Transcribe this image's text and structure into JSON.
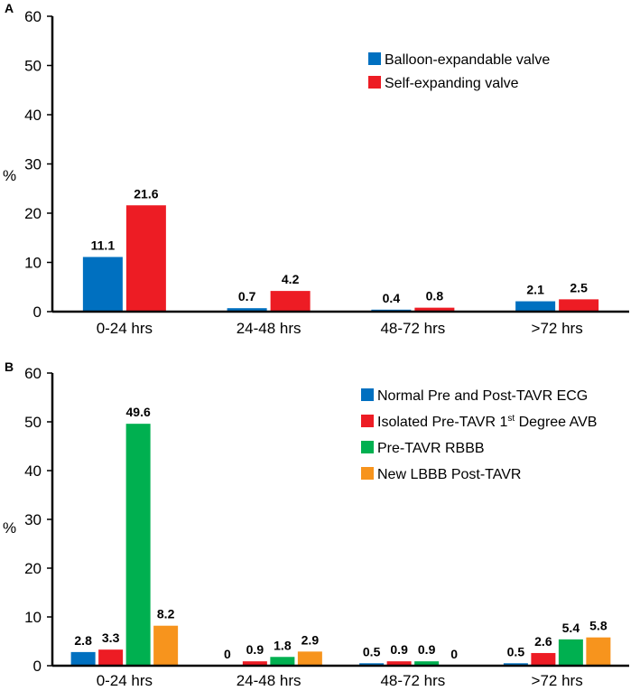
{
  "chart_data": [
    {
      "panel": "A",
      "type": "bar",
      "ylabel": "%",
      "ylim": [
        0,
        60
      ],
      "yticks": [
        0,
        10,
        20,
        30,
        40,
        50,
        60
      ],
      "categories": [
        "0-24 hrs",
        "24-48 hrs",
        "48-72 hrs",
        ">72 hrs"
      ],
      "legend_position": "top-right",
      "series": [
        {
          "name": "Balloon-expandable valve",
          "color": "#0070c0",
          "values": [
            11.1,
            0.7,
            0.4,
            2.1
          ],
          "labels": [
            "11.1",
            "0.7",
            "0.4",
            "2.1"
          ]
        },
        {
          "name": "Self-expanding valve",
          "color": "#ed1c24",
          "values": [
            21.6,
            4.2,
            0.8,
            2.5
          ],
          "labels": [
            "21.6",
            "4.2",
            "0.8",
            "2.5"
          ]
        }
      ]
    },
    {
      "panel": "B",
      "type": "bar",
      "ylabel": "%",
      "ylim": [
        0,
        60
      ],
      "yticks": [
        0,
        10,
        20,
        30,
        40,
        50,
        60
      ],
      "categories": [
        "0-24 hrs",
        "24-48 hrs",
        "48-72 hrs",
        ">72 hrs"
      ],
      "legend_position": "top-right",
      "series": [
        {
          "name": "Normal Pre and Post-TAVR ECG",
          "color": "#0070c0",
          "values": [
            2.8,
            0,
            0.5,
            0.5
          ],
          "labels": [
            "2.8",
            "0",
            "0.5",
            "0.5"
          ]
        },
        {
          "name": "Isolated Pre-TAVR 1st Degree AVB",
          "name_parts": [
            "Isolated Pre-TAVR 1",
            "st",
            " Degree AVB"
          ],
          "color": "#ed1c24",
          "values": [
            3.3,
            0.9,
            0.9,
            2.6
          ],
          "labels": [
            "3.3",
            "0.9",
            "0.9",
            "2.6"
          ]
        },
        {
          "name": "Pre-TAVR RBBB",
          "color": "#00b050",
          "values": [
            49.6,
            1.8,
            0.9,
            5.4
          ],
          "labels": [
            "49.6",
            "1.8",
            "0.9",
            "5.4"
          ]
        },
        {
          "name": "New LBBB Post-TAVR",
          "color": "#f7941d",
          "values": [
            8.2,
            2.9,
            0,
            5.8
          ],
          "labels": [
            "8.2",
            "2.9",
            "0",
            "5.8"
          ]
        }
      ]
    }
  ]
}
